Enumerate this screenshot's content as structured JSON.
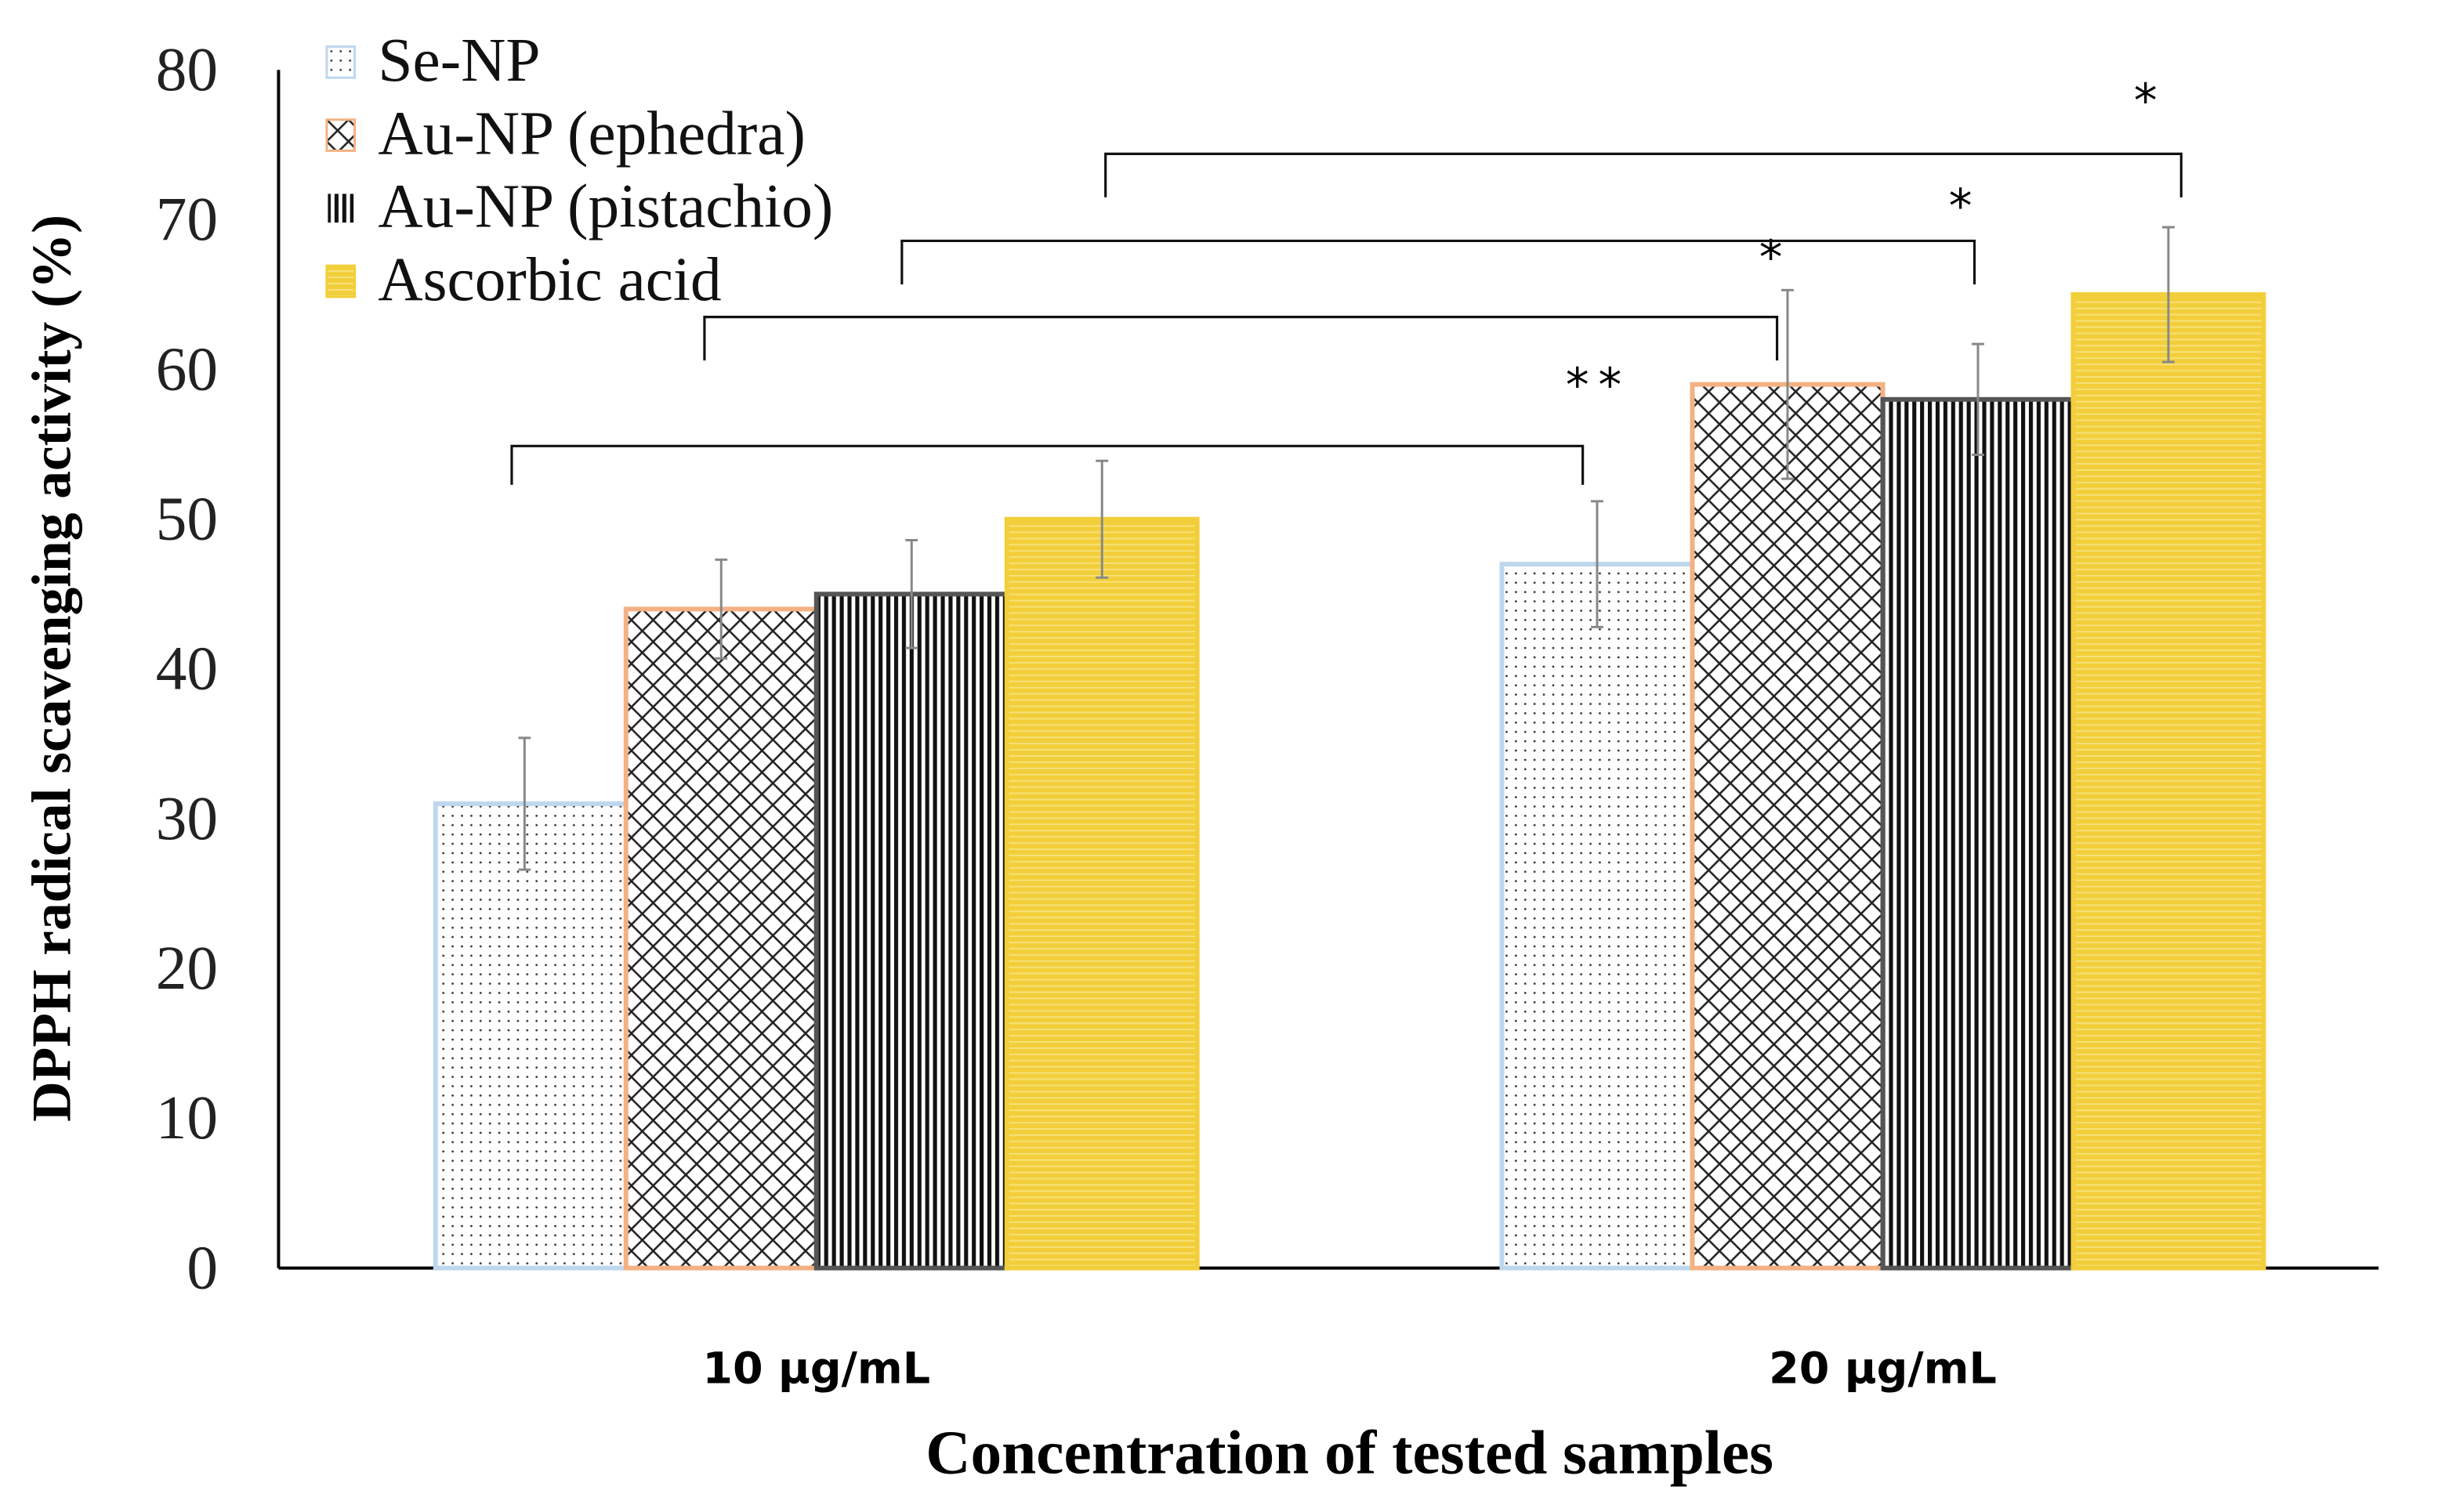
{
  "chart_data": {
    "type": "bar",
    "title": "",
    "xlabel": "Concentration of tested samples",
    "ylabel": "DPPH radical scavenging activity (%)",
    "ylim": [
      0,
      80
    ],
    "yticks": [
      "0",
      "10",
      "20",
      "30",
      "40",
      "50",
      "60",
      "70",
      "80"
    ],
    "categories": [
      "10 µg/mL",
      "20 µg/mL"
    ],
    "legend_position": "top-left",
    "grid": false,
    "series": [
      {
        "name": "Se-NP",
        "values": [
          31,
          47
        ],
        "errors": [
          4.4,
          4.2
        ],
        "color": "#bdd7ee",
        "pattern": "dots"
      },
      {
        "name": "Au-NP (ephedra)",
        "values": [
          44,
          59
        ],
        "errors": [
          3.3,
          6.3
        ],
        "color": "#f4b183",
        "pattern": "weave"
      },
      {
        "name": "Au-NP (pistachio)",
        "values": [
          45,
          58
        ],
        "errors": [
          3.6,
          3.7
        ],
        "color": "#000000",
        "pattern": "vertical"
      },
      {
        "name": "Ascorbic acid",
        "values": [
          50,
          65
        ],
        "errors": [
          3.9,
          4.5
        ],
        "color": "#f2cf3a",
        "pattern": "horizontal"
      }
    ],
    "significance": [
      {
        "from": "Se-NP 10 µg/mL",
        "to": "Se-NP 20 µg/mL",
        "label": "**"
      },
      {
        "from": "Au-NP (ephedra) 10 µg/mL",
        "to": "Au-NP (ephedra) 20 µg/mL",
        "label": "*"
      },
      {
        "from": "Au-NP (pistachio) 10 µg/mL",
        "to": "Au-NP (pistachio) 20 µg/mL",
        "label": "*"
      },
      {
        "from": "Ascorbic acid 10 µg/mL",
        "to": "Ascorbic acid 20 µg/mL",
        "label": "*"
      }
    ]
  }
}
